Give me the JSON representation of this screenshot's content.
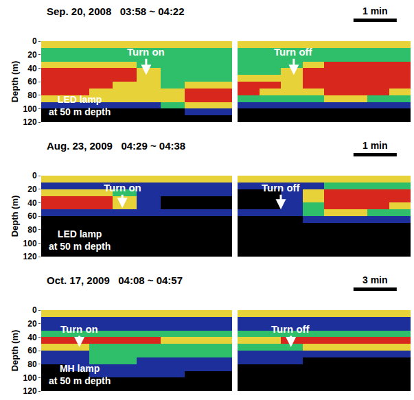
{
  "chart_data": [
    {
      "type": "heatmap",
      "date": "Sep. 20, 2008",
      "clock": "03:58 ~ 04:22",
      "scale_bar": {
        "label": "1 min",
        "minutes": 1
      },
      "ylabel": "Depth (m)",
      "ylim": [
        0,
        120
      ],
      "yticks": [
        0,
        20,
        40,
        60,
        80,
        100,
        120
      ],
      "xlim": [
        0,
        4
      ],
      "tick_labels": "y",
      "zlim": [
        0,
        4
      ],
      "lamp_label": [
        "LED lamp",
        "at 50 m depth"
      ],
      "depth": [
        5,
        15,
        25,
        35,
        45,
        55,
        65,
        75,
        85,
        95,
        105,
        115
      ],
      "halves": [
        {
          "event": "Turn on",
          "event_time": 2.2,
          "text_depth": 16,
          "arrow_depth": 50,
          "minutes": [
            0.25,
            0.75,
            1.25,
            1.75,
            2.25,
            2.75,
            3.25,
            3.75
          ],
          "z": [
            [
              3,
              3,
              3,
              3,
              3,
              3,
              3,
              3
            ],
            [
              2,
              2,
              2,
              2,
              2,
              2,
              2,
              2
            ],
            [
              2,
              2,
              2,
              2,
              2,
              2,
              2,
              2
            ],
            [
              3,
              3,
              3,
              3,
              2,
              2,
              2,
              2
            ],
            [
              4,
              4,
              4,
              4,
              3,
              2,
              2,
              2
            ],
            [
              4,
              4,
              4,
              4,
              3,
              2,
              2,
              2
            ],
            [
              4,
              4,
              4,
              3,
              3,
              2,
              3,
              3
            ],
            [
              4,
              4,
              3,
              3,
              3,
              3,
              4,
              4
            ],
            [
              3,
              3,
              3,
              3,
              3,
              3,
              4,
              4
            ],
            [
              1,
              1,
              1,
              1,
              1,
              2,
              3,
              3
            ],
            [
              0,
              0,
              0,
              0,
              0,
              0,
              1,
              1
            ],
            [
              0,
              0,
              0,
              0,
              0,
              0,
              0,
              0
            ]
          ]
        },
        {
          "event": "Turn off",
          "event_time": 1.3,
          "text_depth": 16,
          "arrow_depth": 50,
          "minutes": [
            0.25,
            0.75,
            1.25,
            1.75,
            2.25,
            2.75,
            3.25,
            3.75
          ],
          "z": [
            [
              3,
              3,
              3,
              3,
              3,
              3,
              3,
              3
            ],
            [
              2,
              2,
              2,
              2,
              2,
              2,
              2,
              2
            ],
            [
              2,
              2,
              2,
              2,
              2,
              2,
              2,
              2
            ],
            [
              2,
              2,
              2,
              3,
              4,
              4,
              4,
              4
            ],
            [
              2,
              2,
              3,
              4,
              4,
              4,
              4,
              4
            ],
            [
              3,
              3,
              3,
              4,
              4,
              4,
              4,
              4
            ],
            [
              4,
              4,
              3,
              4,
              4,
              4,
              4,
              4
            ],
            [
              4,
              3,
              3,
              3,
              4,
              4,
              4,
              3
            ],
            [
              2,
              2,
              2,
              2,
              3,
              3,
              2,
              2
            ],
            [
              1,
              1,
              1,
              1,
              1,
              1,
              1,
              1
            ],
            [
              0,
              0,
              0,
              0,
              0,
              0,
              0,
              0
            ],
            [
              0,
              0,
              0,
              0,
              0,
              0,
              0,
              0
            ]
          ]
        }
      ]
    },
    {
      "type": "heatmap",
      "date": "Aug. 23, 2009",
      "clock": "04:29 ~ 04:38",
      "scale_bar": {
        "label": "1 min",
        "minutes": 1
      },
      "ylabel": "Depth (m)",
      "ylim": [
        0,
        120
      ],
      "yticks": [
        0,
        20,
        40,
        60,
        80,
        100,
        120
      ],
      "xlim": [
        0,
        4
      ],
      "tick_labels": "y",
      "zlim": [
        0,
        4
      ],
      "lamp_label": [
        "LED lamp",
        "at 50 m depth"
      ],
      "depth": [
        5,
        15,
        25,
        35,
        45,
        55,
        65,
        75,
        85,
        95,
        105,
        115
      ],
      "halves": [
        {
          "event": "Turn on",
          "event_time": 1.7,
          "text_depth": 18,
          "arrow_depth": 48,
          "minutes": [
            0.25,
            0.75,
            1.25,
            1.75,
            2.25,
            2.75,
            3.25,
            3.75
          ],
          "z": [
            [
              3,
              3,
              3,
              3,
              3,
              3,
              3,
              3
            ],
            [
              1,
              1,
              1,
              1,
              1,
              1,
              1,
              1
            ],
            [
              3,
              3,
              3,
              2,
              1,
              1,
              1,
              1
            ],
            [
              4,
              4,
              4,
              3,
              1,
              0,
              0,
              0
            ],
            [
              4,
              4,
              4,
              3,
              1,
              0,
              0,
              0
            ],
            [
              1,
              1,
              1,
              1,
              1,
              1,
              1,
              1
            ],
            [
              0,
              0,
              0,
              0,
              0,
              0,
              0,
              0
            ],
            [
              0,
              0,
              0,
              0,
              0,
              0,
              0,
              0
            ],
            [
              0,
              0,
              0,
              0,
              0,
              0,
              0,
              0
            ],
            [
              0,
              0,
              0,
              0,
              0,
              0,
              0,
              0
            ],
            [
              0,
              0,
              0,
              0,
              0,
              0,
              0,
              0
            ],
            [
              0,
              0,
              0,
              0,
              0,
              0,
              0,
              0
            ]
          ]
        },
        {
          "event": "Turn off",
          "event_time": 1.0,
          "text_depth": 18,
          "arrow_depth": 50,
          "minutes": [
            0.25,
            0.75,
            1.25,
            1.75,
            2.25,
            2.75,
            3.25,
            3.75
          ],
          "z": [
            [
              3,
              3,
              3,
              3,
              3,
              3,
              3,
              3
            ],
            [
              1,
              1,
              1,
              1,
              2,
              2,
              2,
              2
            ],
            [
              0,
              0,
              1,
              3,
              4,
              4,
              4,
              4
            ],
            [
              0,
              0,
              1,
              3,
              4,
              4,
              4,
              4
            ],
            [
              0,
              0,
              1,
              2,
              4,
              4,
              4,
              3
            ],
            [
              1,
              1,
              1,
              2,
              3,
              3,
              2,
              2
            ],
            [
              0,
              0,
              0,
              1,
              1,
              1,
              1,
              1
            ],
            [
              0,
              0,
              0,
              0,
              0,
              0,
              0,
              0
            ],
            [
              0,
              0,
              0,
              0,
              0,
              0,
              0,
              0
            ],
            [
              0,
              0,
              0,
              0,
              0,
              0,
              0,
              0
            ],
            [
              0,
              0,
              0,
              0,
              0,
              0,
              0,
              0
            ],
            [
              0,
              0,
              0,
              0,
              0,
              0,
              0,
              0
            ]
          ]
        }
      ]
    },
    {
      "type": "heatmap",
      "date": "Oct. 17, 2009",
      "clock": "04:08 ~ 04:57",
      "scale_bar": {
        "label": "3 min",
        "minutes": 3
      },
      "ylabel": "Depth (m)",
      "ylim": [
        0,
        120
      ],
      "yticks": [
        0,
        20,
        40,
        60,
        80,
        100,
        120
      ],
      "xlim": [
        0,
        12
      ],
      "tick_labels": "y",
      "zlim": [
        0,
        4
      ],
      "lamp_label": [
        "MH lamp",
        "at 50 m depth"
      ],
      "depth": [
        5,
        15,
        25,
        35,
        45,
        55,
        65,
        75,
        85,
        95,
        105,
        115
      ],
      "halves": [
        {
          "event": "Turn on",
          "event_time": 2.4,
          "text_depth": 28,
          "arrow_depth": 55,
          "minutes": [
            0.75,
            2.25,
            3.75,
            5.25,
            6.75,
            8.25,
            9.75,
            11.25
          ],
          "z": [
            [
              3,
              3,
              3,
              3,
              3,
              3,
              3,
              3
            ],
            [
              1,
              1,
              1,
              1,
              1,
              1,
              1,
              1
            ],
            [
              1,
              1,
              1,
              1,
              1,
              1,
              1,
              1
            ],
            [
              2,
              2,
              2,
              2,
              2,
              2,
              2,
              2
            ],
            [
              4,
              4,
              4,
              4,
              4,
              3,
              3,
              3
            ],
            [
              3,
              3,
              2,
              2,
              2,
              2,
              2,
              2
            ],
            [
              1,
              1,
              2,
              2,
              2,
              2,
              2,
              2
            ],
            [
              1,
              1,
              2,
              2,
              1,
              1,
              1,
              1
            ],
            [
              0,
              1,
              1,
              1,
              1,
              1,
              1,
              1
            ],
            [
              0,
              0,
              1,
              1,
              1,
              1,
              0,
              0
            ],
            [
              0,
              0,
              0,
              0,
              0,
              0,
              0,
              0
            ],
            [
              0,
              0,
              0,
              0,
              0,
              0,
              0,
              0
            ]
          ]
        },
        {
          "event": "Turn off",
          "event_time": 3.7,
          "text_depth": 28,
          "arrow_depth": 55,
          "minutes": [
            0.75,
            2.25,
            3.75,
            5.25,
            6.75,
            8.25,
            9.75,
            11.25
          ],
          "z": [
            [
              3,
              3,
              3,
              3,
              3,
              3,
              3,
              3
            ],
            [
              1,
              1,
              1,
              1,
              1,
              1,
              1,
              1
            ],
            [
              1,
              1,
              1,
              1,
              1,
              1,
              1,
              1
            ],
            [
              2,
              2,
              2,
              2,
              2,
              2,
              2,
              2
            ],
            [
              3,
              3,
              4,
              4,
              4,
              4,
              4,
              4
            ],
            [
              2,
              2,
              2,
              3,
              3,
              3,
              3,
              3
            ],
            [
              1,
              1,
              1,
              1,
              1,
              1,
              1,
              1
            ],
            [
              1,
              1,
              1,
              0,
              0,
              0,
              0,
              0
            ],
            [
              0,
              0,
              0,
              0,
              0,
              0,
              0,
              0
            ],
            [
              0,
              0,
              0,
              0,
              0,
              0,
              0,
              0
            ],
            [
              0,
              0,
              0,
              0,
              0,
              0,
              0,
              0
            ],
            [
              0,
              0,
              0,
              0,
              0,
              0,
              0,
              0
            ]
          ]
        }
      ]
    }
  ]
}
